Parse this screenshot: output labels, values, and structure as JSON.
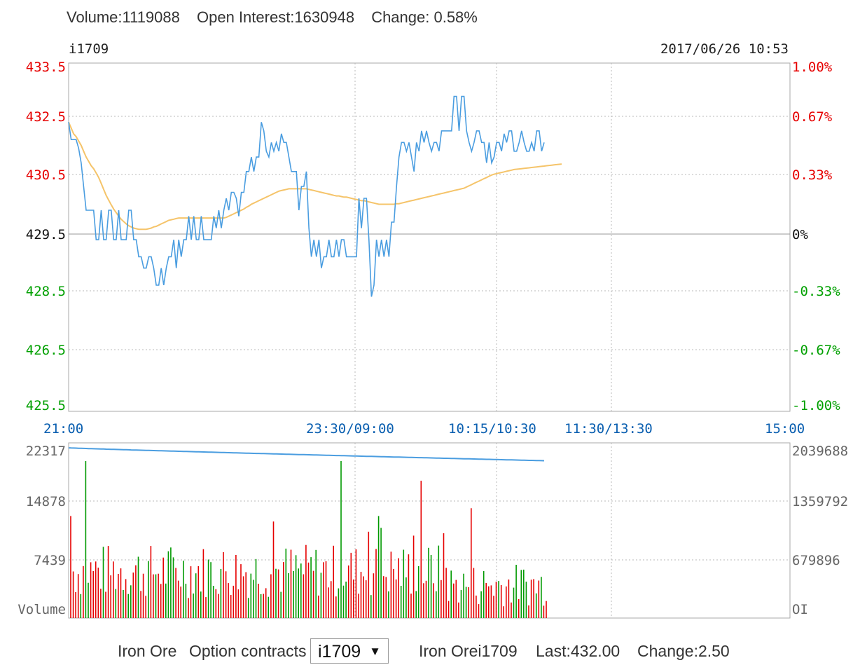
{
  "header": {
    "volume": "Volume:1119088",
    "open_interest": "Open Interest:1630948",
    "change": "Change: 0.58%"
  },
  "chart_data": [
    {
      "type": "line",
      "symbol": "i1709",
      "timestamp": "2017/06/26 10:53",
      "y_ticks_left": [
        "433.5",
        "432.5",
        "430.5",
        "429.5",
        "428.5",
        "426.5",
        "425.5"
      ],
      "y_ticks_right": [
        "1.00%",
        "0.67%",
        "0.33%",
        "0%",
        "-0.33%",
        "-0.67%",
        "-1.00%"
      ],
      "x_ticks": [
        "21:00",
        "23:30/09:00",
        "10:15/10:30",
        "11:30/13:30",
        "15:00"
      ],
      "ylim": [
        425.5,
        433.5
      ],
      "colors": {
        "price": "#4a9de0",
        "average": "#f5c46a",
        "up": "#e60000",
        "down": "#009900",
        "axis_text": "#0a5fb0"
      },
      "series": [
        {
          "values": [
            432.3,
            431.7,
            431.7,
            431.7,
            431.4,
            430.9,
            430.3,
            429.9,
            429.9,
            429.9,
            429.9,
            429.4,
            429.4,
            429.9,
            429.4,
            429.4,
            429.9,
            429.9,
            429.4,
            429.4,
            429.9,
            429.4,
            429.4,
            429.4,
            429.9,
            429.9,
            429.4,
            429.4,
            429.1,
            429.1,
            428.9,
            428.9,
            429.1,
            429.1,
            428.9,
            428.6,
            428.6,
            428.9,
            428.6,
            428.9,
            429.1,
            429.1,
            429.4,
            428.9,
            429.4,
            429.1,
            429.4,
            429.4,
            429.8,
            429.4,
            429.8,
            429.4,
            429.4,
            429.8,
            429.4,
            429.4,
            429.4,
            429.4,
            429.8,
            429.6,
            429.9,
            429.6,
            429.9,
            430.1,
            429.9,
            430.2,
            430.2,
            430.1,
            429.8,
            430.2,
            430.2,
            430.6,
            430.6,
            431.1,
            430.6,
            431.1,
            431.1,
            432.3,
            432.0,
            431.3,
            431.1,
            431.6,
            431.3,
            431.6,
            431.3,
            431.9,
            431.6,
            431.6,
            431.1,
            430.6,
            430.6,
            430.6,
            429.9,
            430.3,
            430.3,
            430.6,
            429.6,
            429.1,
            429.4,
            429.1,
            429.4,
            428.9,
            429.1,
            429.1,
            429.4,
            429.1,
            429.1,
            429.4,
            429.1,
            429.4,
            429.4,
            429.1,
            429.1,
            429.1,
            429.1,
            429.1,
            430.1,
            429.6,
            430.1,
            430.1,
            429.4,
            428.3,
            428.6,
            429.4,
            429.1,
            429.4,
            429.1,
            429.4,
            429.1,
            429.7,
            429.7,
            430.3,
            431.1,
            431.6,
            431.6,
            431.3,
            431.6,
            431.1,
            430.6,
            431.6,
            431.3,
            432.0,
            431.6,
            432.0,
            431.6,
            431.3,
            431.6,
            431.6,
            431.3,
            432.0,
            432.0,
            432.0,
            432.0,
            432.0,
            432.9,
            432.9,
            432.0,
            432.9,
            432.9,
            432.0,
            431.6,
            431.3,
            431.6,
            432.0,
            432.0,
            431.6,
            431.6,
            430.9,
            431.6,
            430.9,
            431.1,
            431.6,
            431.6,
            431.3,
            431.9,
            431.6,
            432.0,
            432.0,
            431.3,
            431.3,
            431.6,
            432.0,
            431.6,
            431.3,
            431.3,
            431.6,
            431.3,
            432.0,
            432.0,
            431.3,
            431.6
          ],
          "avg": [
            432.3,
            432.1,
            431.9,
            431.8,
            431.65,
            431.5,
            431.3,
            431.1,
            430.95,
            430.8,
            430.7,
            430.55,
            430.45,
            430.35,
            430.25,
            430.15,
            430.07,
            429.99,
            429.92,
            429.86,
            429.8,
            429.75,
            429.71,
            429.67,
            429.64,
            429.62,
            429.6,
            429.59,
            429.58,
            429.58,
            429.58,
            429.58,
            429.59,
            429.6,
            429.62,
            429.63,
            429.65,
            429.67,
            429.69,
            429.71,
            429.73,
            429.74,
            429.75,
            429.76,
            429.77,
            429.77,
            429.77,
            429.77,
            429.77,
            429.77,
            429.77,
            429.77,
            429.77,
            429.77,
            429.77,
            429.77,
            429.77,
            429.77,
            429.77,
            429.77,
            429.77,
            429.77,
            429.77,
            429.78,
            429.8,
            429.82,
            429.84,
            429.86,
            429.88,
            429.9,
            429.92,
            429.95,
            429.97,
            430.0,
            430.02,
            430.04,
            430.06,
            430.08,
            430.1,
            430.12,
            430.14,
            430.16,
            430.18,
            430.2,
            430.22,
            430.23,
            430.24,
            430.25,
            430.26,
            430.26,
            430.26,
            430.26,
            430.26,
            430.26,
            430.26,
            430.26,
            430.25,
            430.24,
            430.23,
            430.22,
            430.21,
            430.2,
            430.19,
            430.18,
            430.17,
            430.16,
            430.15,
            430.14,
            430.14,
            430.13,
            430.12,
            430.12,
            430.11,
            430.1,
            430.09,
            430.08,
            430.07,
            430.06,
            430.06,
            430.05,
            430.04,
            430.03,
            430.02,
            430.01,
            430.0,
            430.0,
            430.0,
            430.0,
            430.0,
            430.0,
            430.0,
            430.01,
            430.01,
            430.02,
            430.03,
            430.04,
            430.05,
            430.06,
            430.07,
            430.08,
            430.09,
            430.1,
            430.11,
            430.12,
            430.13,
            430.14,
            430.15,
            430.16,
            430.17,
            430.18,
            430.19,
            430.2,
            430.21,
            430.22,
            430.23,
            430.24,
            430.25,
            430.26,
            430.27,
            430.29,
            430.31,
            430.33,
            430.35,
            430.37,
            430.39,
            430.41,
            430.43,
            430.45,
            430.47,
            430.49,
            430.51,
            430.53,
            430.55,
            430.57,
            430.59,
            430.61,
            430.63,
            430.65,
            430.67,
            430.68,
            430.69,
            430.7,
            430.71,
            430.72,
            430.73,
            430.74,
            430.75,
            430.76,
            430.77,
            430.78,
            430.79,
            430.8,
            430.81,
            430.82,
            430.83,
            430.84,
            430.85,
            430.86
          ]
        }
      ]
    },
    {
      "type": "bar",
      "ylabel_left": "Volume",
      "ylabel_right": "OI",
      "y_ticks_left": [
        "22317",
        "14878",
        "7439"
      ],
      "y_ticks_right": [
        "2039688",
        "1359792",
        "679896"
      ],
      "ylim_volume": [
        0,
        22317
      ],
      "ylim_oi": [
        0,
        2039688
      ],
      "oi_start": 1990000,
      "oi_end": 1840000,
      "volume_spikes": [
        {
          "i": 0,
          "v": 13000,
          "c": "up"
        },
        {
          "i": 6,
          "v": 20000,
          "c": "down"
        },
        {
          "i": 81,
          "v": 12300,
          "c": "up"
        },
        {
          "i": 108,
          "v": 20000,
          "c": "down"
        },
        {
          "i": 119,
          "v": 11000,
          "c": "up"
        },
        {
          "i": 123,
          "v": 13000,
          "c": "down"
        },
        {
          "i": 124,
          "v": 11500,
          "c": "down"
        },
        {
          "i": 140,
          "v": 17500,
          "c": "up"
        },
        {
          "i": 160,
          "v": 14000,
          "c": "up"
        },
        {
          "i": 137,
          "v": 10500,
          "c": "up"
        },
        {
          "i": 149,
          "v": 10800,
          "c": "up"
        }
      ]
    }
  ],
  "footer": {
    "commodity": "Iron Ore",
    "options_label": "Option contracts",
    "selected_contract": "i1709",
    "dropdown_arrow": "▼",
    "summary_name": "Iron Orei1709",
    "last": "Last:432.00",
    "change": "Change:2.50"
  }
}
